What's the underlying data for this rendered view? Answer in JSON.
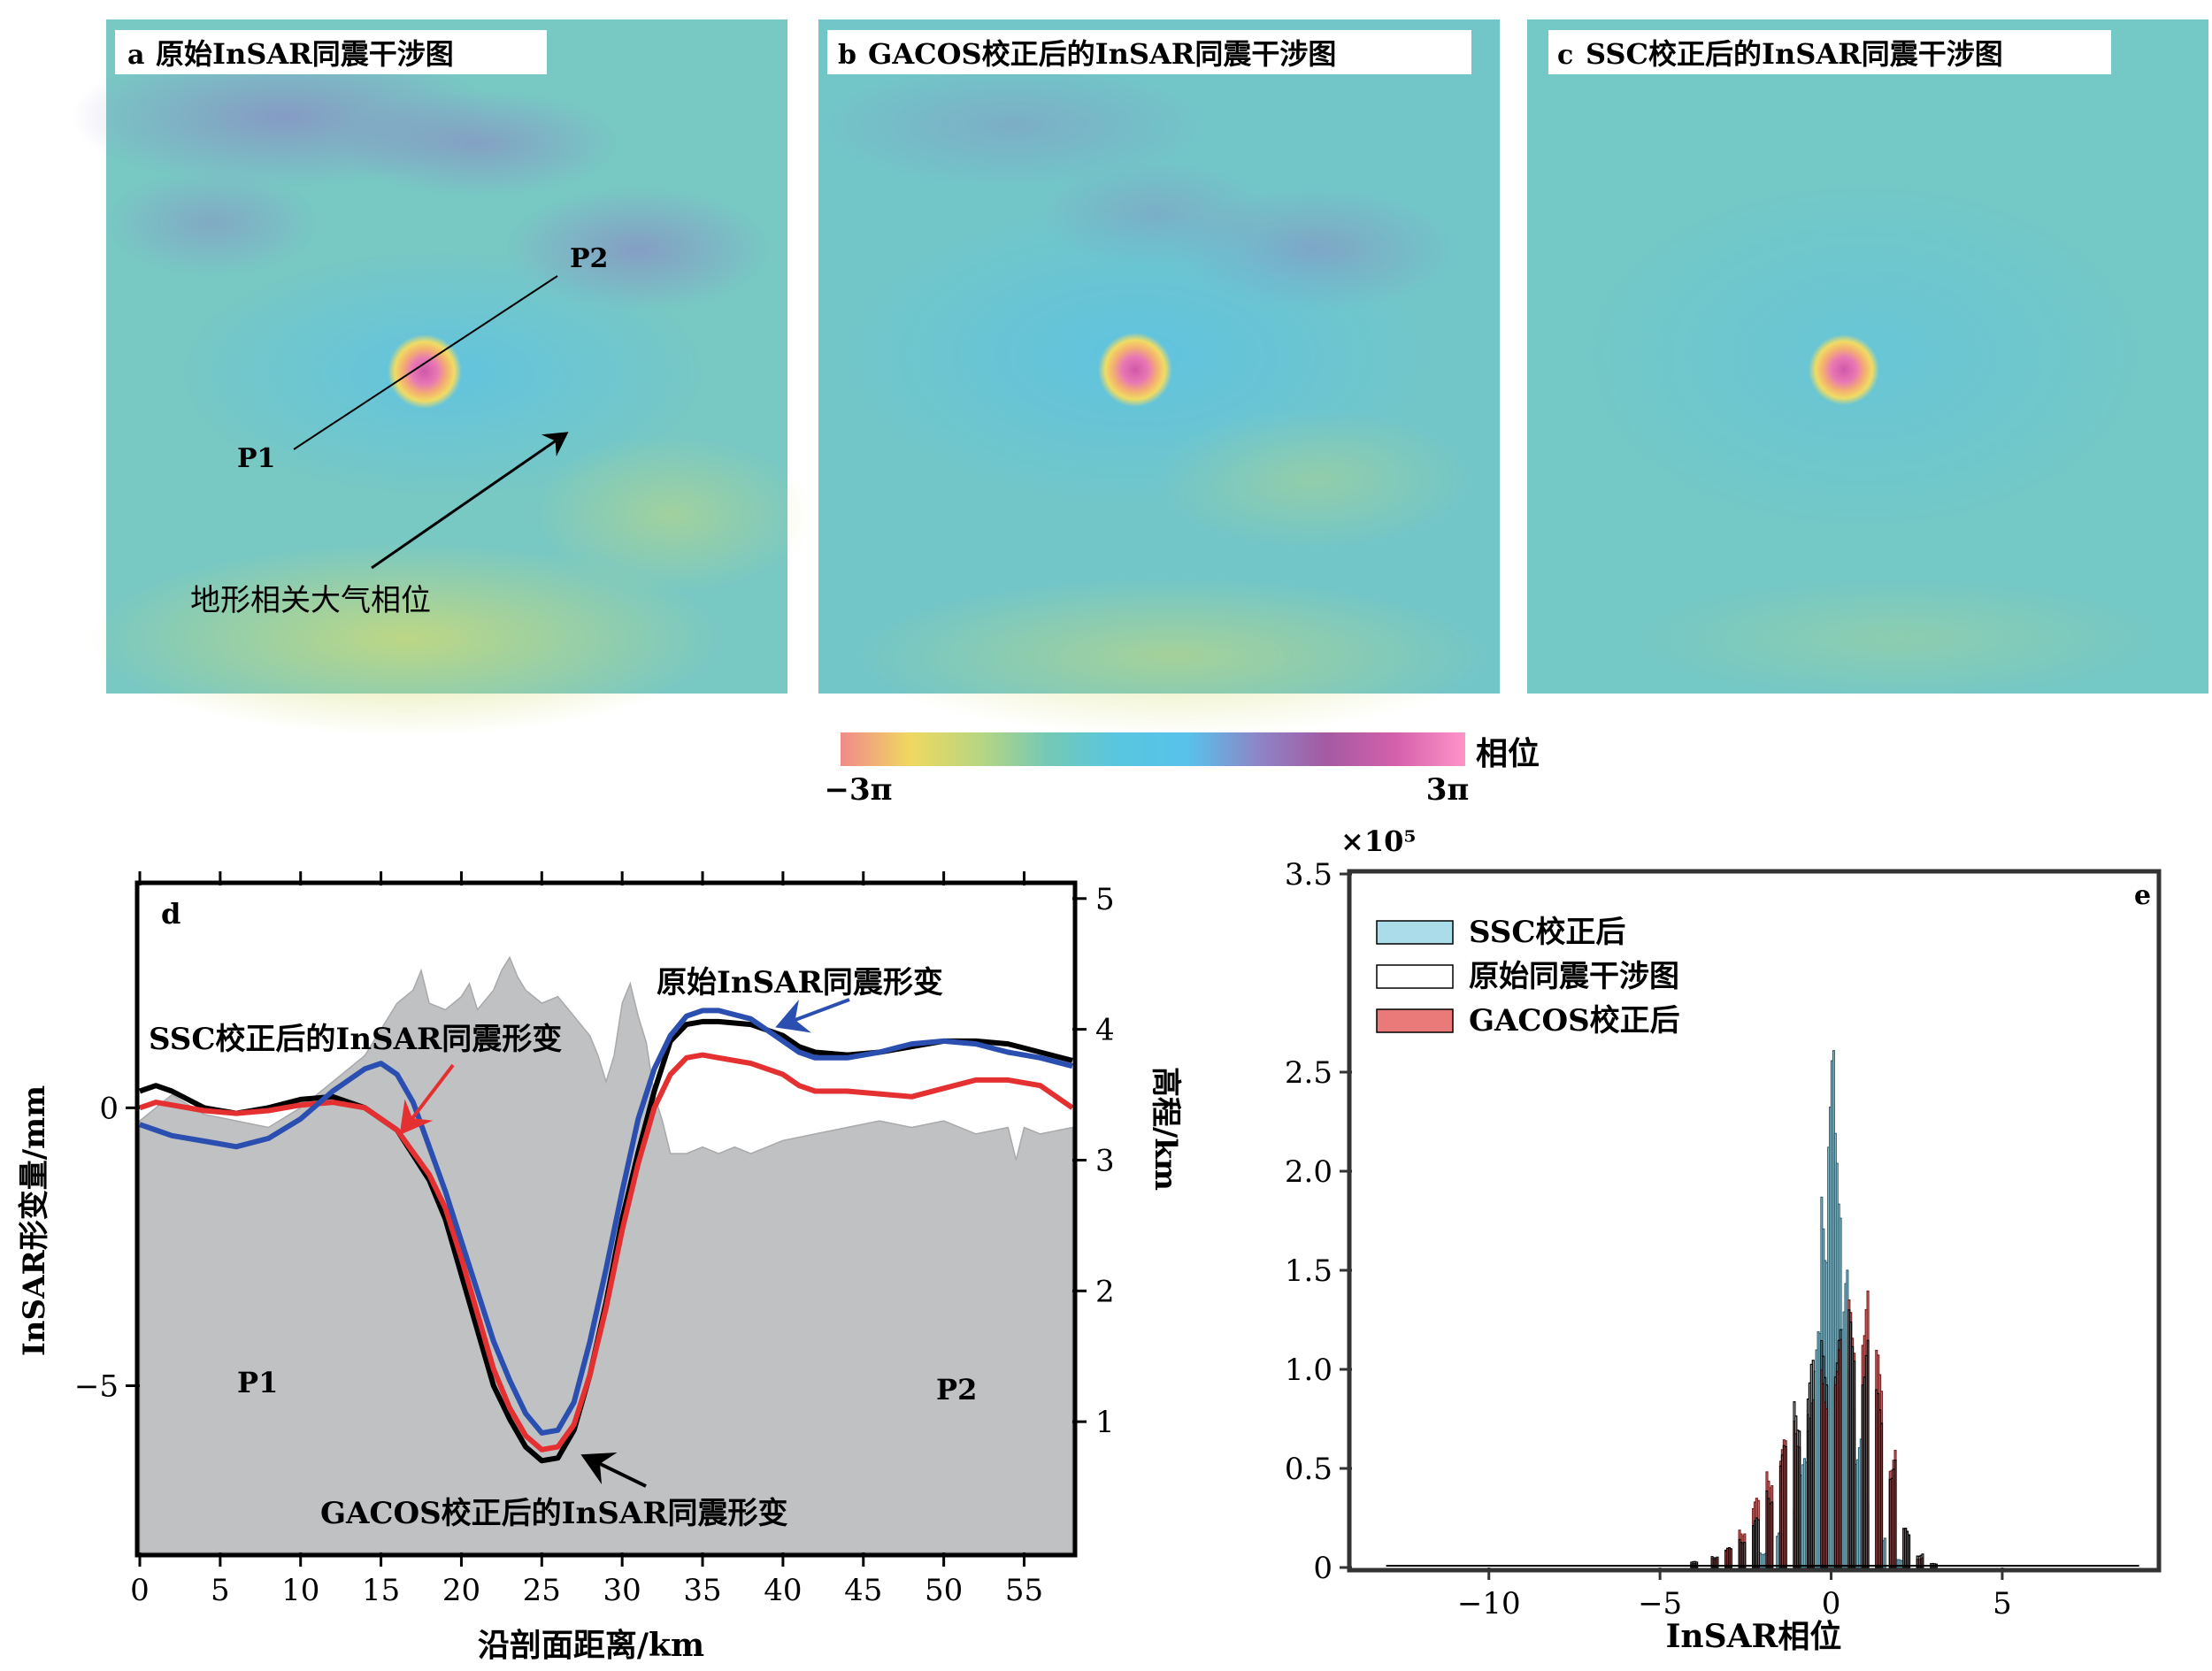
{
  "panels": {
    "a": {
      "letter": "a",
      "title": "原始InSAR同震干涉图"
    },
    "b": {
      "letter": "b",
      "title": "GACOS校正后的InSAR同震干涉图"
    },
    "c": {
      "letter": "c",
      "title": "SSC校正后的InSAR同震干涉图"
    }
  },
  "map_annotations": {
    "p1": "P1",
    "p2": "P2",
    "arrow_label": "地形相关大气相位"
  },
  "colorbar": {
    "label": "相位",
    "min_label": "−3π",
    "max_label": "3π",
    "colors": [
      "#f08a8a",
      "#f0d860",
      "#b8d680",
      "#74c8b6",
      "#58c6e0",
      "#58c2ea",
      "#8c86c8",
      "#a45aa2",
      "#d460ac",
      "#ff94c8"
    ]
  },
  "map_colors": {
    "background": "#78c8c4",
    "cyan": "#60c4e2",
    "purple": "#8c86c4",
    "yellow": "#c8dc74",
    "light_yellow": "#a8d498"
  },
  "chart_data": [
    {
      "panel": "d",
      "type": "line",
      "letter": "d",
      "xlabel": "沿剖面距离/km",
      "ylabel": "InSAR形变量/mm",
      "y2label": "高程/km",
      "xlim": [
        0,
        58
      ],
      "ylim": [
        -8,
        4
      ],
      "y2lim": [
        0,
        5.1
      ],
      "xticks": [
        0,
        5,
        10,
        15,
        20,
        25,
        30,
        35,
        40,
        45,
        50,
        55
      ],
      "yticks": [
        0,
        -5
      ],
      "y2ticks": [
        1,
        2,
        3,
        4,
        5
      ],
      "series": [
        {
          "key": "black",
          "color": "#000000",
          "x": [
            0,
            1,
            2,
            4,
            6,
            8,
            10,
            12,
            14,
            16,
            18,
            19,
            20,
            21,
            22,
            23,
            24,
            25,
            26,
            27,
            28,
            29,
            30,
            31,
            32,
            33,
            34,
            35,
            36,
            38,
            40,
            41,
            42,
            44,
            46,
            48,
            50,
            52,
            54,
            56,
            58
          ],
          "y": [
            0.3,
            0.4,
            0.3,
            0.0,
            -0.1,
            0.0,
            0.15,
            0.2,
            0.0,
            -0.4,
            -1.3,
            -2.0,
            -3.0,
            -4.0,
            -5.0,
            -5.6,
            -6.1,
            -6.35,
            -6.3,
            -5.8,
            -4.8,
            -3.5,
            -2.0,
            -0.8,
            0.3,
            1.2,
            1.5,
            1.55,
            1.55,
            1.5,
            1.3,
            1.1,
            1.0,
            0.95,
            1.0,
            1.1,
            1.2,
            1.2,
            1.15,
            1.0,
            0.85
          ]
        },
        {
          "key": "red",
          "color": "#e43030",
          "x": [
            0,
            1,
            2,
            4,
            6,
            8,
            10,
            12,
            14,
            16,
            18,
            19,
            20,
            21,
            22,
            23,
            24,
            25,
            26,
            27,
            28,
            29,
            30,
            31,
            32,
            33,
            34,
            35,
            36,
            38,
            40,
            41,
            42,
            44,
            46,
            48,
            50,
            52,
            54,
            56,
            58
          ],
          "y": [
            0.0,
            0.1,
            0.05,
            -0.05,
            -0.1,
            -0.05,
            0.05,
            0.1,
            0.0,
            -0.4,
            -1.2,
            -1.8,
            -2.7,
            -3.7,
            -4.7,
            -5.4,
            -5.9,
            -6.15,
            -6.1,
            -5.7,
            -4.8,
            -3.6,
            -2.2,
            -1.0,
            0.0,
            0.6,
            0.9,
            0.95,
            0.9,
            0.8,
            0.6,
            0.4,
            0.3,
            0.3,
            0.25,
            0.2,
            0.35,
            0.5,
            0.5,
            0.4,
            0.0
          ]
        },
        {
          "key": "blue",
          "color": "#2a4fb0",
          "x": [
            0,
            1,
            2,
            4,
            6,
            8,
            10,
            12,
            14,
            15,
            16,
            17,
            18,
            19,
            20,
            21,
            22,
            23,
            24,
            25,
            26,
            27,
            28,
            29,
            30,
            31,
            32,
            33,
            34,
            35,
            36,
            38,
            40,
            41,
            42,
            44,
            46,
            48,
            50,
            52,
            54,
            56,
            58
          ],
          "y": [
            -0.3,
            -0.4,
            -0.5,
            -0.6,
            -0.7,
            -0.55,
            -0.2,
            0.3,
            0.7,
            0.8,
            0.6,
            0.1,
            -0.7,
            -1.5,
            -2.4,
            -3.3,
            -4.2,
            -4.9,
            -5.5,
            -5.85,
            -5.8,
            -5.3,
            -4.2,
            -2.9,
            -1.5,
            -0.2,
            0.7,
            1.3,
            1.65,
            1.75,
            1.75,
            1.6,
            1.2,
            1.0,
            0.9,
            0.9,
            1.0,
            1.15,
            1.2,
            1.15,
            1.0,
            0.9,
            0.75
          ]
        }
      ],
      "elevation": {
        "x": [
          0,
          2,
          4,
          6,
          8,
          10,
          12,
          14,
          15,
          16,
          17,
          17.5,
          18,
          19,
          20,
          20.5,
          21,
          22,
          22.5,
          23,
          23.5,
          24,
          25,
          26,
          27,
          28,
          28.5,
          29,
          29.5,
          30,
          30.5,
          31,
          31.5,
          32,
          32.5,
          33,
          34,
          35,
          36,
          37,
          38,
          40,
          42,
          44,
          46,
          48,
          50,
          52,
          54,
          54.5,
          55,
          56,
          58
        ],
        "y": [
          3.3,
          3.5,
          3.35,
          3.3,
          3.25,
          3.4,
          3.6,
          3.8,
          4.0,
          4.2,
          4.3,
          4.45,
          4.2,
          4.15,
          4.25,
          4.35,
          4.15,
          4.3,
          4.45,
          4.55,
          4.4,
          4.3,
          4.2,
          4.25,
          4.1,
          3.95,
          3.8,
          3.6,
          3.8,
          4.2,
          4.35,
          4.1,
          3.9,
          3.5,
          3.3,
          3.05,
          3.05,
          3.1,
          3.05,
          3.1,
          3.05,
          3.15,
          3.2,
          3.25,
          3.3,
          3.25,
          3.3,
          3.2,
          3.25,
          3.0,
          3.25,
          3.2,
          3.25
        ]
      },
      "labels": {
        "original": "原始InSAR同震形变",
        "ssc": "SSC校正后的InSAR同震形变",
        "gacos": "GACOS校正后的InSAR同震形变",
        "p1": "P1",
        "p2": "P2"
      }
    },
    {
      "panel": "e",
      "type": "bar",
      "letter": "e",
      "xlabel": "InSAR相位",
      "ylabel": "",
      "y_multiplier": "×10⁵",
      "xlim": [
        -14,
        9.5
      ],
      "ylim": [
        0,
        3.5
      ],
      "xticks": [
        -10,
        -5,
        0,
        5
      ],
      "yticks": [
        0,
        0.5,
        1.0,
        1.5,
        2.0,
        2.5,
        3.5
      ],
      "ytick_labels": [
        "0",
        "0.5",
        "1.0",
        "1.5",
        "2.0",
        "2.5",
        "3.5"
      ],
      "bin_width": 0.2,
      "legend_position": "top-left",
      "series": [
        {
          "key": "ssc",
          "name": "SSC校正后",
          "fill": "#aadcea",
          "stroke": "#336677",
          "centers": [
            -3.0,
            -2.0,
            -1.5,
            -1.0,
            -0.8,
            -0.6,
            -0.4,
            -0.2,
            0.0,
            0.2,
            0.4,
            0.6,
            0.8,
            1.0,
            1.5,
            2.0
          ],
          "values": [
            0.02,
            0.08,
            0.18,
            0.3,
            0.55,
            0.8,
            1.2,
            1.9,
            2.62,
            2.2,
            1.5,
            1.0,
            0.65,
            0.4,
            0.15,
            0.04
          ]
        },
        {
          "key": "original",
          "name": "原始同震干涉图",
          "fill": "none",
          "stroke": "#000000",
          "centers": [
            -4.0,
            -3.4,
            -3.0,
            -2.6,
            -2.2,
            -1.8,
            -1.4,
            -1.0,
            -0.6,
            -0.2,
            0.2,
            0.6,
            1.0,
            1.4,
            1.8,
            2.2,
            2.6,
            3.0
          ],
          "values": [
            0.03,
            0.06,
            0.1,
            0.15,
            0.25,
            0.4,
            0.62,
            0.85,
            1.05,
            1.15,
            1.2,
            1.3,
            1.15,
            0.9,
            0.55,
            0.2,
            0.07,
            0.02
          ]
        },
        {
          "key": "gacos",
          "name": "GACOS校正后",
          "fill": "#ea7a7a",
          "stroke": "#7a2020",
          "centers": [
            -4.0,
            -3.4,
            -3.0,
            -2.6,
            -2.2,
            -1.8,
            -1.4,
            -1.0,
            -0.6,
            -0.2,
            0.2,
            0.6,
            1.0,
            1.4,
            1.8,
            2.2,
            2.6
          ],
          "values": [
            0.02,
            0.05,
            0.1,
            0.2,
            0.35,
            0.5,
            0.65,
            0.75,
            0.85,
            1.0,
            1.15,
            1.35,
            1.4,
            1.1,
            0.6,
            0.2,
            0.05
          ]
        }
      ]
    }
  ]
}
